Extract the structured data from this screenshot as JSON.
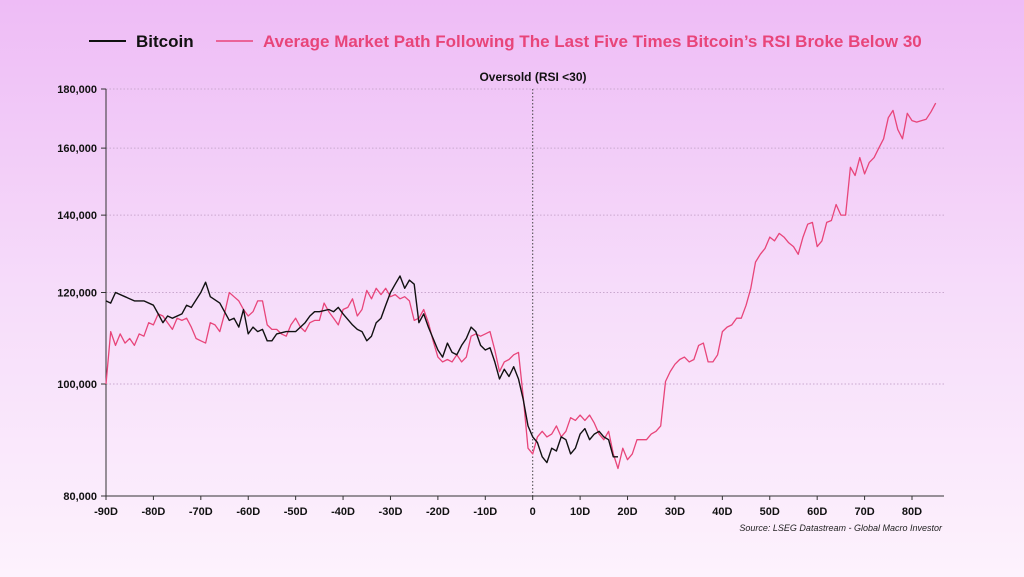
{
  "chart_data": {
    "type": "line",
    "title": "",
    "xlabel": "",
    "ylabel": "",
    "y_scale": "log",
    "ylim": [
      80000,
      180000
    ],
    "xlim": [
      -90,
      85
    ],
    "grid": "horizontal dotted",
    "legend_placement": "top",
    "annotation": "Oversold (RSI <30)",
    "annotation_x": 0,
    "source": "Source: LSEG Datastream - Global Macro Investor",
    "y_ticks": [
      80000,
      100000,
      120000,
      140000,
      160000,
      180000
    ],
    "y_tick_labels": [
      "80,000",
      "100,000",
      "120,000",
      "140,000",
      "160,000",
      "180,000"
    ],
    "x_ticks": [
      -90,
      -80,
      -70,
      -60,
      -50,
      -40,
      -30,
      -20,
      -10,
      0,
      10,
      20,
      30,
      40,
      50,
      60,
      70,
      80
    ],
    "x_tick_labels": [
      "-90D",
      "-80D",
      "-70D",
      "-60D",
      "-50D",
      "-40D",
      "-30D",
      "-20D",
      "-10D",
      "0",
      "10D",
      "20D",
      "30D",
      "40D",
      "50D",
      "60D",
      "70D",
      "80D"
    ],
    "series": [
      {
        "name": "Bitcoin",
        "color": "#111111",
        "points": [
          [
            -90,
            118
          ],
          [
            -89,
            117.5
          ],
          [
            -88,
            120
          ],
          [
            -86,
            119
          ],
          [
            -84,
            118
          ],
          [
            -82,
            118
          ],
          [
            -80,
            117
          ],
          [
            -79,
            115
          ],
          [
            -78,
            113
          ],
          [
            -77,
            114.5
          ],
          [
            -76,
            114
          ],
          [
            -74,
            115
          ],
          [
            -73,
            117
          ],
          [
            -72,
            116.5
          ],
          [
            -70,
            120
          ],
          [
            -69,
            122.5
          ],
          [
            -68,
            119
          ],
          [
            -66,
            117.5
          ],
          [
            -64,
            113.5
          ],
          [
            -63,
            114
          ],
          [
            -62,
            112
          ],
          [
            -61,
            116
          ],
          [
            -60,
            110.5
          ],
          [
            -59,
            112
          ],
          [
            -58,
            111
          ],
          [
            -57,
            111.5
          ],
          [
            -56,
            109
          ],
          [
            -55,
            109
          ],
          [
            -54,
            110.5
          ],
          [
            -52,
            111
          ],
          [
            -50,
            111
          ],
          [
            -48,
            113
          ],
          [
            -47,
            114.5
          ],
          [
            -46,
            115.5
          ],
          [
            -45,
            115.5
          ],
          [
            -43,
            116
          ],
          [
            -42,
            115.5
          ],
          [
            -41,
            116.5
          ],
          [
            -40,
            115
          ],
          [
            -38,
            112.5
          ],
          [
            -37,
            111.5
          ],
          [
            -36,
            111
          ],
          [
            -35,
            109
          ],
          [
            -34,
            110
          ],
          [
            -33,
            113
          ],
          [
            -32,
            114
          ],
          [
            -31,
            117
          ],
          [
            -30,
            120
          ],
          [
            -29,
            122
          ],
          [
            -28,
            124
          ],
          [
            -27,
            121
          ],
          [
            -26,
            123
          ],
          [
            -25,
            122
          ],
          [
            -24,
            113
          ],
          [
            -23,
            115
          ],
          [
            -22,
            112
          ],
          [
            -20,
            107
          ],
          [
            -19,
            105.5
          ],
          [
            -18,
            108.5
          ],
          [
            -17,
            106.5
          ],
          [
            -16,
            106
          ],
          [
            -15,
            108
          ],
          [
            -14,
            109.5
          ],
          [
            -13,
            112
          ],
          [
            -12,
            111
          ],
          [
            -11,
            108
          ],
          [
            -10,
            107
          ],
          [
            -9,
            107.5
          ],
          [
            -8,
            104.5
          ],
          [
            -7,
            101
          ],
          [
            -6,
            103
          ],
          [
            -5,
            101.5
          ],
          [
            -4,
            103.5
          ],
          [
            -3,
            101
          ],
          [
            -2,
            97
          ],
          [
            -1,
            92
          ],
          [
            0,
            90
          ],
          [
            1,
            89
          ],
          [
            2,
            86.5
          ],
          [
            3,
            85.5
          ],
          [
            4,
            88
          ],
          [
            5,
            87.5
          ],
          [
            6,
            90
          ],
          [
            7,
            89.5
          ],
          [
            8,
            87
          ],
          [
            9,
            88
          ],
          [
            10,
            90.5
          ],
          [
            11,
            91.5
          ],
          [
            12,
            89.5
          ],
          [
            13,
            90.5
          ],
          [
            14,
            91
          ],
          [
            15,
            90
          ],
          [
            16,
            89.5
          ],
          [
            17,
            86.5
          ],
          [
            18,
            86.5
          ]
        ]
      },
      {
        "name": "Average Market Path Following The Last Five Times Bitcoin’s RSI Broke Below 30",
        "color": "#e8457a",
        "points": [
          [
            -90,
            100
          ],
          [
            -89,
            111
          ],
          [
            -88,
            108
          ],
          [
            -87,
            110.5
          ],
          [
            -86,
            108.5
          ],
          [
            -85,
            109.5
          ],
          [
            -84,
            108
          ],
          [
            -83,
            110.5
          ],
          [
            -82,
            110
          ],
          [
            -81,
            113
          ],
          [
            -80,
            112.5
          ],
          [
            -79,
            115
          ],
          [
            -78,
            114.5
          ],
          [
            -77,
            113
          ],
          [
            -76,
            111.5
          ],
          [
            -75,
            114
          ],
          [
            -74,
            113.5
          ],
          [
            -73,
            114
          ],
          [
            -72,
            112
          ],
          [
            -71,
            109.5
          ],
          [
            -70,
            109
          ],
          [
            -69,
            108.5
          ],
          [
            -68,
            113
          ],
          [
            -67,
            112.5
          ],
          [
            -66,
            111
          ],
          [
            -65,
            115
          ],
          [
            -64,
            120
          ],
          [
            -63,
            119
          ],
          [
            -62,
            118
          ],
          [
            -61,
            116
          ],
          [
            -60,
            114.5
          ],
          [
            -59,
            115.5
          ],
          [
            -58,
            118
          ],
          [
            -57,
            118
          ],
          [
            -56,
            112.5
          ],
          [
            -55,
            111.5
          ],
          [
            -54,
            111.5
          ],
          [
            -53,
            110.5
          ],
          [
            -52,
            110
          ],
          [
            -51,
            112.5
          ],
          [
            -50,
            114
          ],
          [
            -49,
            112
          ],
          [
            -48,
            111
          ],
          [
            -47,
            113
          ],
          [
            -46,
            113.5
          ],
          [
            -45,
            113.5
          ],
          [
            -44,
            117.5
          ],
          [
            -43,
            115.5
          ],
          [
            -42,
            114
          ],
          [
            -41,
            112.5
          ],
          [
            -40,
            116
          ],
          [
            -39,
            116.5
          ],
          [
            -38,
            118.5
          ],
          [
            -37,
            114.5
          ],
          [
            -36,
            116
          ],
          [
            -35,
            120.5
          ],
          [
            -34,
            118.5
          ],
          [
            -33,
            121
          ],
          [
            -32,
            119.5
          ],
          [
            -31,
            121
          ],
          [
            -30,
            119
          ],
          [
            -29,
            119.5
          ],
          [
            -28,
            118.5
          ],
          [
            -27,
            119
          ],
          [
            -26,
            118
          ],
          [
            -25,
            113.5
          ],
          [
            -24,
            114
          ],
          [
            -23,
            116
          ],
          [
            -22,
            113
          ],
          [
            -21,
            109
          ],
          [
            -20,
            105.5
          ],
          [
            -19,
            104.5
          ],
          [
            -18,
            105
          ],
          [
            -17,
            104.5
          ],
          [
            -16,
            106
          ],
          [
            -15,
            104.5
          ],
          [
            -14,
            105.5
          ],
          [
            -13,
            110
          ],
          [
            -12,
            110.5
          ],
          [
            -11,
            110
          ],
          [
            -10,
            110.5
          ],
          [
            -9,
            111
          ],
          [
            -8,
            107
          ],
          [
            -7,
            102.5
          ],
          [
            -6,
            104.5
          ],
          [
            -5,
            105
          ],
          [
            -4,
            106
          ],
          [
            -3,
            106.5
          ],
          [
            -2,
            97.5
          ],
          [
            -1,
            88
          ],
          [
            0,
            87
          ],
          [
            1,
            90
          ],
          [
            2,
            91
          ],
          [
            3,
            90
          ],
          [
            4,
            90.5
          ],
          [
            5,
            92
          ],
          [
            6,
            90
          ],
          [
            7,
            91
          ],
          [
            8,
            93.5
          ],
          [
            9,
            93
          ],
          [
            10,
            94
          ],
          [
            11,
            93
          ],
          [
            12,
            94
          ],
          [
            13,
            92.5
          ],
          [
            14,
            90.5
          ],
          [
            15,
            89.5
          ],
          [
            16,
            91
          ],
          [
            17,
            87
          ],
          [
            18,
            84.5
          ],
          [
            19,
            88
          ],
          [
            20,
            86
          ],
          [
            21,
            87
          ],
          [
            22,
            89.5
          ],
          [
            23,
            89.5
          ],
          [
            24,
            89.5
          ],
          [
            25,
            90.5
          ],
          [
            26,
            91
          ],
          [
            27,
            92
          ],
          [
            28,
            100.5
          ],
          [
            29,
            102.5
          ],
          [
            30,
            104
          ],
          [
            31,
            105
          ],
          [
            32,
            105.5
          ],
          [
            33,
            104.5
          ],
          [
            34,
            105
          ],
          [
            35,
            108
          ],
          [
            36,
            108.5
          ],
          [
            37,
            104.5
          ],
          [
            38,
            104.5
          ],
          [
            39,
            106
          ],
          [
            40,
            111
          ],
          [
            41,
            112
          ],
          [
            42,
            112.5
          ],
          [
            43,
            114
          ],
          [
            44,
            114
          ],
          [
            45,
            117
          ],
          [
            46,
            121
          ],
          [
            47,
            127.5
          ],
          [
            48,
            129.5
          ],
          [
            49,
            131
          ],
          [
            50,
            134
          ],
          [
            51,
            133
          ],
          [
            52,
            135
          ],
          [
            53,
            134
          ],
          [
            54,
            132.5
          ],
          [
            55,
            131.5
          ],
          [
            56,
            129.5
          ],
          [
            57,
            134
          ],
          [
            58,
            137.5
          ],
          [
            59,
            138
          ],
          [
            60,
            131.5
          ],
          [
            61,
            133
          ],
          [
            62,
            138
          ],
          [
            63,
            138.5
          ],
          [
            64,
            143
          ],
          [
            65,
            140
          ],
          [
            66,
            140
          ],
          [
            67,
            154
          ],
          [
            68,
            151.5
          ],
          [
            69,
            157
          ],
          [
            70,
            152
          ],
          [
            71,
            155.5
          ],
          [
            72,
            157
          ],
          [
            73,
            160
          ],
          [
            74,
            163
          ],
          [
            75,
            170
          ],
          [
            76,
            172.5
          ],
          [
            77,
            166
          ],
          [
            78,
            163
          ],
          [
            79,
            171.5
          ],
          [
            80,
            169
          ],
          [
            81,
            168.5
          ],
          [
            82,
            169
          ],
          [
            83,
            169.5
          ],
          [
            84,
            172
          ],
          [
            85,
            175
          ]
        ]
      }
    ],
    "point_units": "x in days, y in thousands"
  }
}
